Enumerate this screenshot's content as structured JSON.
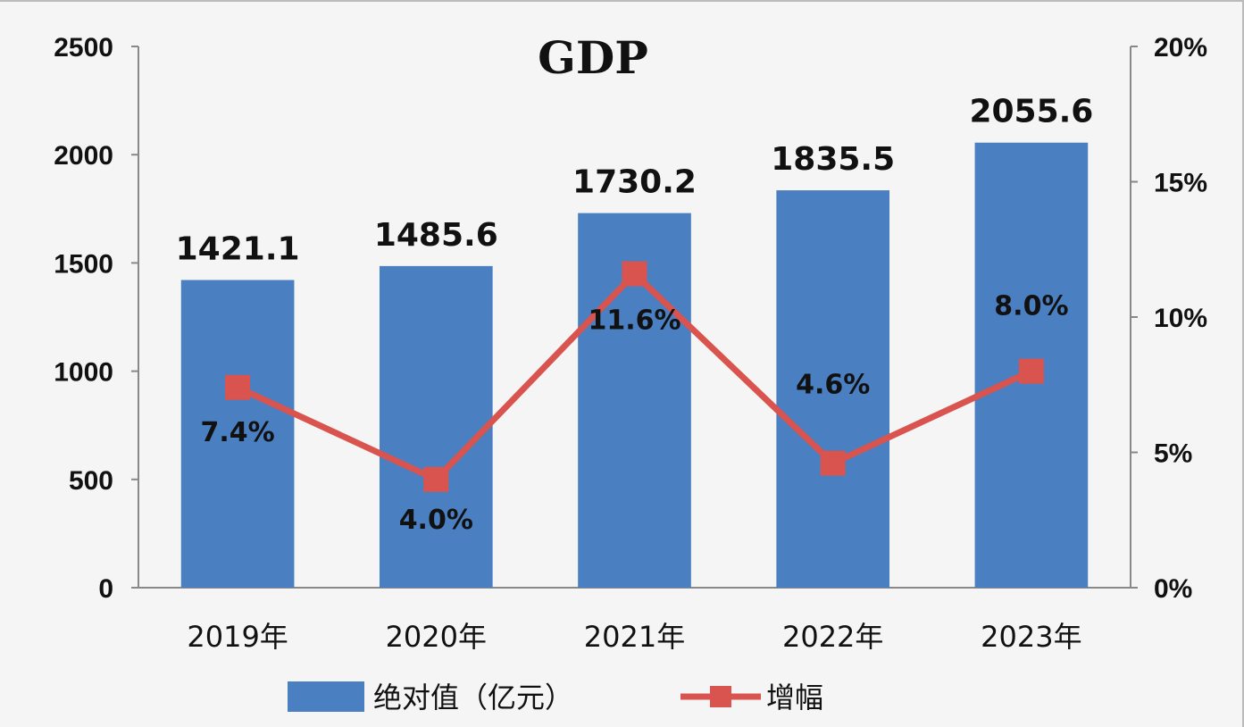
{
  "chart_data": {
    "type": "bar",
    "title": "GDP",
    "categories": [
      "2019年",
      "2020年",
      "2021年",
      "2022年",
      "2023年"
    ],
    "series": [
      {
        "name": "绝对值（亿元）",
        "type": "bar",
        "axis": "left",
        "values": [
          1421.1,
          1485.6,
          1730.2,
          1835.5,
          2055.6
        ],
        "labels": [
          "1421.1",
          "1485.6",
          "1730.2",
          "1835.5",
          "2055.6"
        ],
        "color": "#4a7fc1"
      },
      {
        "name": "增幅",
        "type": "line",
        "axis": "right",
        "values": [
          7.4,
          4.0,
          11.6,
          4.6,
          8.0
        ],
        "labels": [
          "7.4%",
          "4.0%",
          "11.6%",
          "4.6%",
          "8.0%"
        ],
        "color": "#d9534f"
      }
    ],
    "y_left": {
      "min": 0,
      "max": 2500,
      "ticks": [
        "0",
        "500",
        "1000",
        "1500",
        "2000",
        "2500"
      ]
    },
    "y_right": {
      "min": 0,
      "max": 20,
      "ticks": [
        "0%",
        "5%",
        "10%",
        "15%",
        "20%"
      ]
    },
    "grid": false,
    "legend_position": "bottom"
  }
}
